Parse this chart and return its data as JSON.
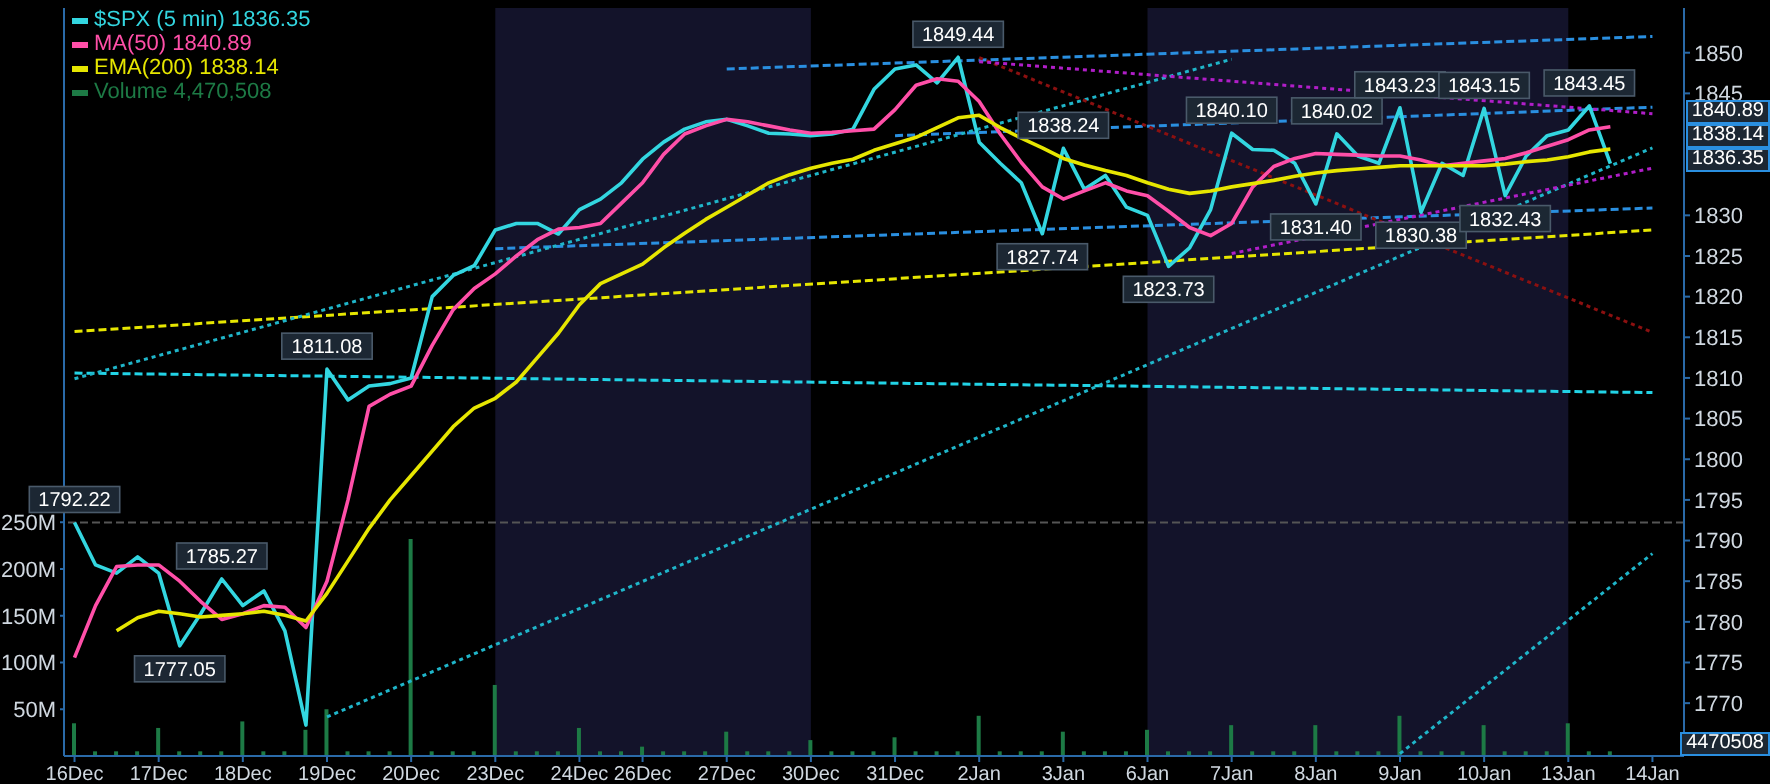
{
  "chart_data": {
    "type": "line",
    "legend": "top left",
    "marker": "none",
    "categories": [
      "16Dec",
      null,
      null,
      null,
      "17Dec",
      null,
      null,
      null,
      "18Dec",
      null,
      null,
      null,
      "19Dec",
      null,
      null,
      null,
      "20Dec",
      null,
      null,
      null,
      "23Dec",
      null,
      null,
      null,
      "24Dec",
      null,
      null,
      "26Dec",
      null,
      null,
      null,
      "27Dec",
      null,
      null,
      null,
      "30Dec",
      null,
      null,
      null,
      "31Dec",
      null,
      null,
      null,
      "2Jan",
      null,
      null,
      null,
      "3Jan",
      null,
      null,
      null,
      "6Jan",
      null,
      null,
      null,
      "7Jan",
      null,
      null,
      null,
      "8Jan",
      null,
      null,
      null,
      "9Jan",
      null,
      null,
      null,
      "10Jan",
      null,
      null,
      null,
      "13Jan",
      null,
      null,
      null,
      "14Jan",
      null
    ],
    "ylim": [
      1763.5,
      1855.5
    ],
    "yticks": [
      1770,
      1775,
      1780,
      1785,
      1790,
      1795,
      1800,
      1805,
      1810,
      1815,
      1820,
      1825,
      1830,
      1845,
      1850
    ],
    "y2lim": [
      0,
      800
    ],
    "y2ticks": [
      {
        "value": 50,
        "label": "50M"
      },
      {
        "value": 100,
        "label": "100M"
      },
      {
        "value": 150,
        "label": "150M"
      },
      {
        "value": 200,
        "label": "200M"
      },
      {
        "value": 250,
        "label": "250M"
      }
    ],
    "bands": [
      {
        "axis": "x",
        "from": "23Dec",
        "to": "30Dec",
        "color": "#13132a"
      },
      {
        "axis": "x",
        "from": "6Jan",
        "to": "13Jan",
        "color": "#13132a"
      }
    ],
    "ref_lines": [
      {
        "axis": "y",
        "value": 1792.22,
        "color": "#555555",
        "line_style": "dashed"
      }
    ],
    "series": [
      {
        "color": "#e6e600",
        "line_style": "dashed",
        "x": [
          "16Dec",
          "14Jan"
        ],
        "values": [
          1815.7,
          1828.2
        ]
      },
      {
        "color": "#22d3e6",
        "line_style": "dashed",
        "x": [
          "16Dec",
          "14Jan"
        ],
        "values": [
          1810.6,
          1808.2
        ]
      },
      {
        "color": "#2a8fe0",
        "line_style": "dashed",
        "x": [
          "27Dec",
          "14Jan"
        ],
        "values": [
          1848,
          1852
        ]
      },
      {
        "color": "#2a8fe0",
        "line_style": "dashed",
        "x": [
          "31Dec",
          "14Jan"
        ],
        "values": [
          1839.8,
          1843.3
        ]
      },
      {
        "color": "#2a8fe0",
        "line_style": "dashed",
        "x": [
          "23Dec",
          "14Jan"
        ],
        "values": [
          1825.9,
          1830.9
        ]
      },
      {
        "color": "#1fb5c9",
        "line_style": "dotted",
        "x": [
          "16Dec",
          "7Jan"
        ],
        "values": [
          1809.9,
          1849.2
        ]
      },
      {
        "color": "#1fb5c9",
        "line_style": "dotted",
        "x": [
          "19Dec",
          "14Jan"
        ],
        "values": [
          1768.3,
          1838.3
        ]
      },
      {
        "color": "#1fb5c9",
        "line_style": "dotted",
        "x": [
          "9Jan",
          "14Jan"
        ],
        "values": [
          1763.8,
          1788.4
        ]
      },
      {
        "color": "#8b1010",
        "line_style": "dotted",
        "x": [
          "2Jan",
          "14Jan"
        ],
        "values": [
          1849.4,
          1815.6
        ]
      },
      {
        "color": "#b01ec8",
        "line_style": "dotted",
        "x": [
          "2Jan",
          "14Jan"
        ],
        "values": [
          1848.9,
          1842.5
        ]
      },
      {
        "color": "#b01ec8",
        "line_style": "dotted",
        "x": [
          "7Jan",
          "14Jan"
        ],
        "values": [
          1825.3,
          1835.8
        ]
      },
      {
        "name": "$SPX (5 min) 1836.35",
        "color": "#33d6e0",
        "line_style": "solid",
        "values": [
          1792.22,
          1787,
          1786,
          1788,
          1786,
          1777.05,
          1781,
          1785.27,
          1782,
          1783.8,
          1778.9,
          1767.3,
          1811.08,
          1807.3,
          1809,
          1809.3,
          1810,
          1820,
          1822.6,
          1823.8,
          1828.2,
          1829,
          1829,
          1827.7,
          1830.7,
          1832,
          1834,
          1836.9,
          1839,
          1840.6,
          1841.5,
          1841.8,
          1841,
          1840.1,
          1840,
          1839.8,
          1840,
          1840.6,
          1845.5,
          1848,
          1848.5,
          1846.3,
          1849.44,
          1839,
          1836.4,
          1834,
          1827.74,
          1838.24,
          1833.2,
          1834.9,
          1831,
          1830,
          1823.73,
          1826,
          1830.7,
          1840.1,
          1838.1,
          1838,
          1836.4,
          1831.4,
          1840.02,
          1837.3,
          1836.4,
          1843.23,
          1830.38,
          1836.4,
          1834.9,
          1843.15,
          1832.43,
          1837.3,
          1839.8,
          1840.5,
          1843.45,
          1836.35,
          null,
          null,
          null
        ]
      },
      {
        "name": "MA(50) 1840.89",
        "color": "#ff4fa8",
        "line_style": "solid",
        "values": [
          1775.6,
          1782,
          1786.8,
          1787,
          1787,
          1785,
          1782.5,
          1780.3,
          1781,
          1782,
          1781.8,
          1779.3,
          1785,
          1795,
          1806.5,
          1808,
          1809,
          1814,
          1818.4,
          1821,
          1822.8,
          1825,
          1827,
          1828.3,
          1828.5,
          1829,
          1831.5,
          1834,
          1837.5,
          1840,
          1841,
          1841.8,
          1841.5,
          1841,
          1840.5,
          1840.1,
          1840.2,
          1840.4,
          1840.6,
          1843,
          1846,
          1846.8,
          1846.5,
          1844,
          1840,
          1836.5,
          1833.5,
          1832,
          1833,
          1834,
          1833,
          1832.4,
          1830.5,
          1828.5,
          1827.5,
          1829,
          1833.5,
          1836,
          1837,
          1837.6,
          1837.5,
          1837.4,
          1837.3,
          1837.3,
          1836.8,
          1836.1,
          1836.4,
          1836.7,
          1837,
          1837.7,
          1838.5,
          1839.3,
          1840.5,
          1840.89,
          null,
          null,
          null
        ]
      },
      {
        "name": "EMA(200) 1838.14",
        "color": "#e6e600",
        "line_style": "solid",
        "values": [
          null,
          null,
          1778.9,
          1780.5,
          1781.3,
          1781,
          1780.6,
          1780.8,
          1781,
          1781.3,
          1780.8,
          1780.1,
          1783.5,
          1787.5,
          1791.5,
          1795,
          1798,
          1801,
          1804,
          1806.3,
          1807.5,
          1809.5,
          1812.5,
          1815.5,
          1819,
          1821.6,
          1822.8,
          1824,
          1826,
          1827.8,
          1829.5,
          1831,
          1832.5,
          1834,
          1835,
          1835.8,
          1836.4,
          1836.9,
          1838,
          1838.8,
          1839.6,
          1840.8,
          1842,
          1842.3,
          1840.8,
          1839.5,
          1838.3,
          1837,
          1836.2,
          1835.5,
          1834.9,
          1834,
          1833.2,
          1832.7,
          1833,
          1833.5,
          1833.9,
          1834.3,
          1834.8,
          1835.2,
          1835.5,
          1835.7,
          1835.9,
          1836.1,
          1836.1,
          1836.1,
          1836.1,
          1836.1,
          1836.3,
          1836.6,
          1836.8,
          1837.2,
          1837.8,
          1838.14,
          null,
          null,
          null
        ]
      },
      {
        "name": "Volume 4,470,508",
        "type": "bar",
        "axis": "y2",
        "color": "#1d7a45",
        "values": [
          35,
          5,
          5,
          5,
          30,
          5,
          5,
          5,
          37,
          5,
          5,
          28,
          50,
          5,
          5,
          5,
          232,
          5,
          5,
          5,
          76,
          5,
          5,
          5,
          30,
          5,
          5,
          10,
          5,
          5,
          5,
          26,
          5,
          5,
          5,
          17,
          5,
          5,
          5,
          20,
          5,
          5,
          5,
          43,
          5,
          5,
          5,
          26,
          5,
          5,
          5,
          28,
          5,
          5,
          5,
          33,
          5,
          5,
          5,
          33,
          5,
          5,
          5,
          43,
          5,
          5,
          5,
          33,
          5,
          5,
          5,
          35,
          5,
          5,
          null,
          null,
          null
        ]
      }
    ],
    "annotations": [
      {
        "text": "1792.22",
        "x": "16Dec",
        "y": 1792.22
      },
      {
        "text": "1777.05",
        "y": 1777.05
      },
      {
        "text": "1785.27",
        "y": 1785.27
      },
      {
        "text": "1811.08",
        "x": "19Dec",
        "y": 1811.08
      },
      {
        "text": "1849.44",
        "y": 1849.44
      },
      {
        "text": "1827.74",
        "y": 1827.74
      },
      {
        "text": "1838.24",
        "y": 1838.24
      },
      {
        "text": "1823.73",
        "y": 1823.73
      },
      {
        "text": "1840.10",
        "x": "7Jan",
        "y": 1840.1
      },
      {
        "text": "1831.40",
        "x": "8Jan",
        "y": 1831.4
      },
      {
        "text": "1840.02",
        "y": 1840.02
      },
      {
        "text": "1843.23",
        "x": "9Jan",
        "y": 1843.23
      },
      {
        "text": "1830.38",
        "y": 1830.38
      },
      {
        "text": "1843.15",
        "x": "10Jan",
        "y": 1843.15
      },
      {
        "text": "1832.43",
        "y": 1832.43
      },
      {
        "text": "1843.45",
        "y": 1843.45
      },
      "1840.89",
      "1838.14",
      "1836.35",
      "4470508"
    ]
  }
}
